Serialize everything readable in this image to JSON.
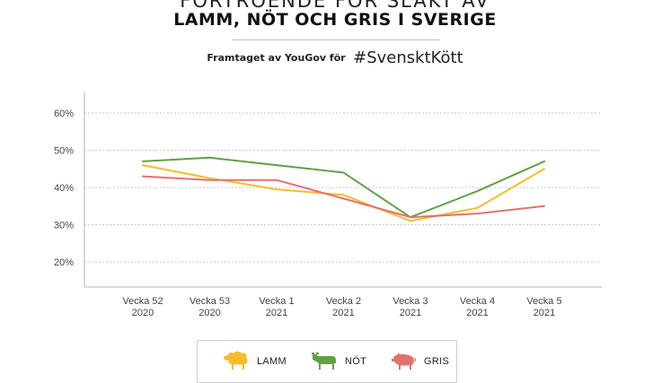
{
  "header": {
    "title_line1": "FÖRTROENDE FÖR SLAKT AV",
    "title_line2": "LAMM, NÖT OCH GRIS I SVERIGE",
    "subtitle_lead": "Framtaget av YouGov för",
    "subtitle_tag": "#SvensktKött"
  },
  "colors": {
    "lamm": "#f5bd2b",
    "not": "#62a046",
    "gris": "#e2716f",
    "grid": "#c8c8c8",
    "axis": "#b5b5b5"
  },
  "chart_data": {
    "type": "line",
    "categories": [
      [
        "Vecka 52",
        "2020"
      ],
      [
        "Vecka 53",
        "2020"
      ],
      [
        "Vecka 1",
        "2021"
      ],
      [
        "Vecka 2",
        "2021"
      ],
      [
        "Vecka 3",
        "2021"
      ],
      [
        "Vecka 4",
        "2021"
      ],
      [
        "Vecka 5",
        "2021"
      ]
    ],
    "y_ticks": [
      "60%",
      "50%",
      "40%",
      "30%",
      "20%"
    ],
    "y_tick_values": [
      60,
      50,
      40,
      30,
      20
    ],
    "ylim": [
      15,
      63
    ],
    "grid": true,
    "legend_position": "bottom",
    "series": [
      {
        "key": "lamm",
        "name": "LAMM",
        "icon": "sheep-icon",
        "values": [
          46,
          42.5,
          39.5,
          38,
          31,
          34.5,
          45
        ]
      },
      {
        "key": "not",
        "name": "NÖT",
        "icon": "cow-icon",
        "values": [
          47,
          48,
          46,
          44,
          32,
          39,
          47
        ]
      },
      {
        "key": "gris",
        "name": "GRIS",
        "icon": "pig-icon",
        "values": [
          43,
          42,
          42,
          37,
          32,
          33,
          35
        ]
      }
    ]
  }
}
